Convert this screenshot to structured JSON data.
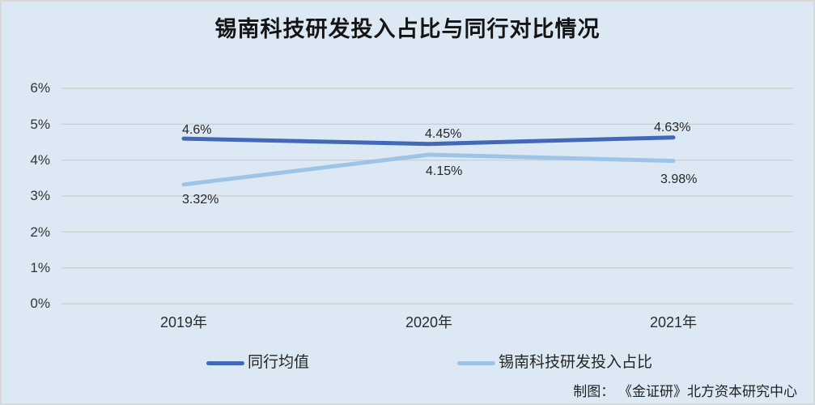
{
  "chart": {
    "title": "锡南科技研发投入占比与同行对比情况",
    "attribution": "制图： 《金证研》北方资本研究中心"
  },
  "chart_data": {
    "type": "line",
    "title": "锡南科技研发投入占比与同行对比情况",
    "categories": [
      "2019年",
      "2020年",
      "2021年"
    ],
    "series": [
      {
        "name": "同行均值",
        "values": [
          4.6,
          4.45,
          4.63
        ],
        "point_labels": [
          "4.6%",
          "4.45%",
          "4.63%"
        ],
        "color": "#4169b8"
      },
      {
        "name": "锡南科技研发投入占比",
        "values": [
          3.32,
          4.15,
          3.98
        ],
        "point_labels": [
          "3.32%",
          "4.15%",
          "3.98%"
        ],
        "color": "#9dc3e6"
      }
    ],
    "ylim": [
      0,
      6
    ],
    "ytick_interval": 1,
    "yticks_top_to_bottom": [
      "6%",
      "5%",
      "4%",
      "3%",
      "2%",
      "1%",
      "0%"
    ],
    "grid": "horizontal",
    "legend_position": "bottom",
    "background": "#dce9f5",
    "gridline_color": "#cfcfcf",
    "xlabel": "",
    "ylabel": ""
  }
}
